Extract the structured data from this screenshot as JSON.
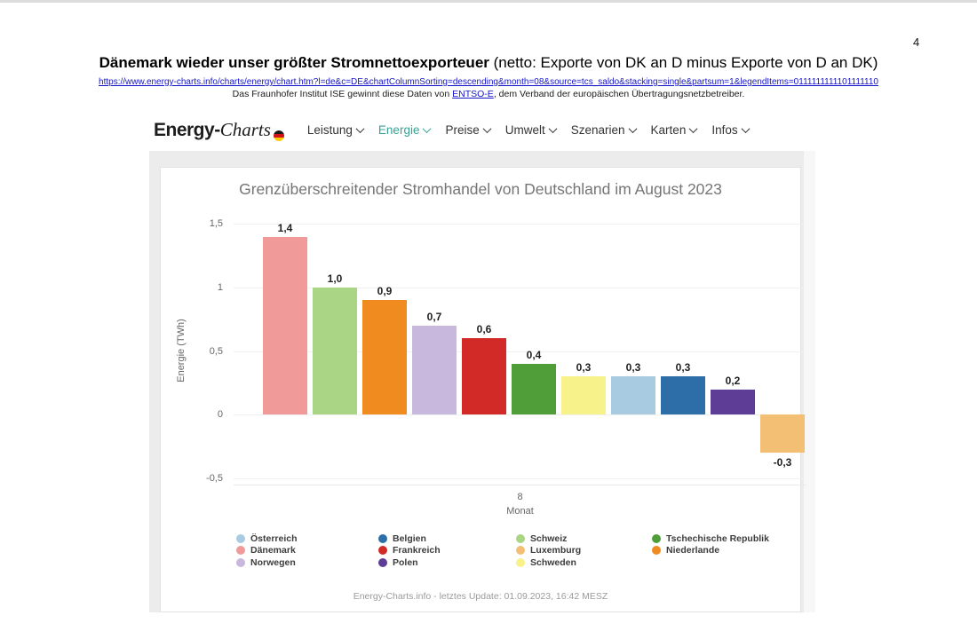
{
  "page": {
    "number": "4"
  },
  "header": {
    "title_bold": "Dänemark wieder unser größter Stromnettoexporteuer",
    "title_rest": " (netto: Exporte von DK an D minus Exporte von D an DK)",
    "url": "https://www.energy-charts.info/charts/energy/chart.htm?l=de&c=DE&chartColumnSorting=descending&month=08&source=tcs_saldo&stacking=single&partsum=1&legendItems=0111111111101111110",
    "source_prefix": "Das Fraunhofer Institut ISE gewinnt diese Daten von ",
    "source_link": "ENTSO-E",
    "source_suffix": ", dem Verband der europäischen Übertragungsnetzbetreiber."
  },
  "site": {
    "logo_bold": "Energy-",
    "logo_italic": "Charts",
    "nav": [
      {
        "label": "Leistung",
        "active": false
      },
      {
        "label": "Energie",
        "active": true
      },
      {
        "label": "Preise",
        "active": false
      },
      {
        "label": "Umwelt",
        "active": false
      },
      {
        "label": "Szenarien",
        "active": false
      },
      {
        "label": "Karten",
        "active": false
      },
      {
        "label": "Infos",
        "active": false
      }
    ],
    "active_color": "#35a394"
  },
  "chart_data": {
    "type": "bar",
    "title": "Grenzüberschreitender Stromhandel von Deutschland im August 2023",
    "ylabel": "Energie (TWh)",
    "xlabel": "Monat",
    "x_tick": "8",
    "ylim": [
      -0.55,
      1.55
    ],
    "grid": true,
    "yticks": [
      {
        "value": 1.5,
        "label": "1,5"
      },
      {
        "value": 1.0,
        "label": "1"
      },
      {
        "value": 0.5,
        "label": "0,5"
      },
      {
        "value": 0.0,
        "label": "0"
      },
      {
        "value": -0.5,
        "label": "-0,5"
      }
    ],
    "bars": [
      {
        "name": "Dänemark",
        "value": 1.4,
        "label": "1,4"
      },
      {
        "name": "Schweiz",
        "value": 1.0,
        "label": "1,0"
      },
      {
        "name": "Niederlande",
        "value": 0.9,
        "label": "0,9"
      },
      {
        "name": "Norwegen",
        "value": 0.7,
        "label": "0,7"
      },
      {
        "name": "Frankreich",
        "value": 0.6,
        "label": "0,6"
      },
      {
        "name": "Tschechische Republik",
        "value": 0.4,
        "label": "0,4"
      },
      {
        "name": "Schweden",
        "value": 0.3,
        "label": "0,3"
      },
      {
        "name": "Österreich",
        "value": 0.3,
        "label": "0,3"
      },
      {
        "name": "Belgien",
        "value": 0.3,
        "label": "0,3"
      },
      {
        "name": "Polen",
        "value": 0.2,
        "label": "0,2"
      },
      {
        "name": "Luxemburg",
        "value": -0.3,
        "label": "-0,3"
      }
    ],
    "colors": {
      "Österreich": "#a9cbe2",
      "Dänemark": "#f09a9a",
      "Norwegen": "#c9b8de",
      "Belgien": "#2e6ea8",
      "Frankreich": "#d22b27",
      "Polen": "#5e3d96",
      "Schweiz": "#aad584",
      "Luxemburg": "#f2bf75",
      "Schweden": "#f8f28a",
      "Tschechische Republik": "#4f9e3a",
      "Niederlande": "#ef8b1f"
    },
    "legend_position": "bottom",
    "legend_columns": [
      [
        "Österreich",
        "Dänemark",
        "Norwegen"
      ],
      [
        "Belgien",
        "Frankreich",
        "Polen"
      ],
      [
        "Schweiz",
        "Luxemburg",
        "Schweden"
      ],
      [
        "Tschechische Republik",
        "Niederlande"
      ]
    ],
    "footer": "Energy-Charts.info - letztes Update: 01.09.2023, 16:42 MESZ"
  }
}
